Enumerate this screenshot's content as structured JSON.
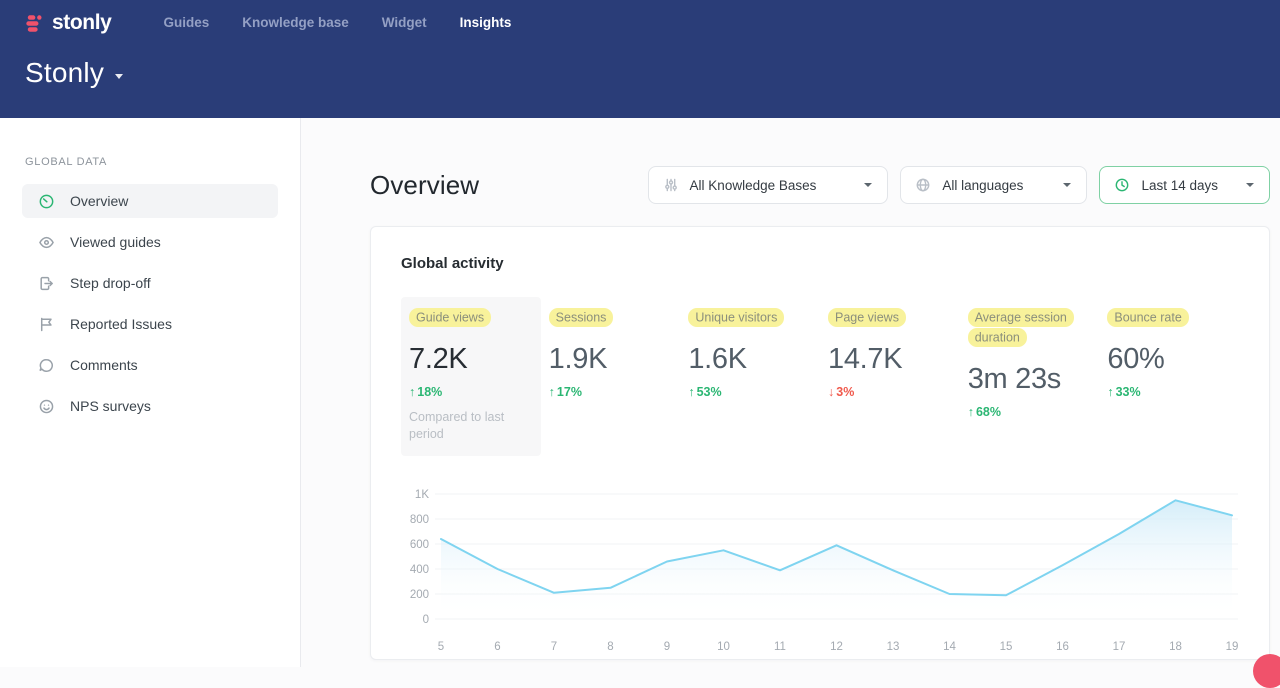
{
  "topbar": {
    "logo_text": "stonly",
    "workspace": "Stonly",
    "nav": [
      {
        "label": "Guides",
        "active": false
      },
      {
        "label": "Knowledge base",
        "active": false
      },
      {
        "label": "Widget",
        "active": false
      },
      {
        "label": "Insights",
        "active": true
      }
    ]
  },
  "sidebar": {
    "section_label": "GLOBAL DATA",
    "items": [
      {
        "label": "Overview",
        "icon": "gauge-icon",
        "active": true
      },
      {
        "label": "Viewed guides",
        "icon": "eye-icon",
        "active": false
      },
      {
        "label": "Step drop-off",
        "icon": "step-dropoff-icon",
        "active": false
      },
      {
        "label": "Reported Issues",
        "icon": "flag-icon",
        "active": false
      },
      {
        "label": "Comments",
        "icon": "comment-icon",
        "active": false
      },
      {
        "label": "NPS surveys",
        "icon": "smiley-icon",
        "active": false
      }
    ]
  },
  "page": {
    "title": "Overview"
  },
  "filters": [
    {
      "label": "All Knowledge Bases",
      "icon": "sliders-icon",
      "accent": false
    },
    {
      "label": "All languages",
      "icon": "globe-icon",
      "accent": false
    },
    {
      "label": "Last 14 days",
      "icon": "clock-icon",
      "accent": true
    }
  ],
  "card": {
    "title": "Global activity"
  },
  "metrics": [
    {
      "label": "Guide views",
      "value": "7.2K",
      "delta": "18%",
      "direction": "up",
      "selected": true,
      "note": "Compared to last period"
    },
    {
      "label": "Sessions",
      "value": "1.9K",
      "delta": "17%",
      "direction": "up",
      "selected": false,
      "note": ""
    },
    {
      "label": "Unique visitors",
      "value": "1.6K",
      "delta": "53%",
      "direction": "up",
      "selected": false,
      "note": ""
    },
    {
      "label": "Page views",
      "value": "14.7K",
      "delta": "3%",
      "direction": "down",
      "selected": false,
      "note": ""
    },
    {
      "label": "Average session duration",
      "value": "3m 23s",
      "delta": "68%",
      "direction": "up",
      "selected": false,
      "note": ""
    },
    {
      "label": "Bounce rate",
      "value": "60%",
      "delta": "33%",
      "direction": "up",
      "selected": false,
      "note": ""
    }
  ],
  "chart_data": {
    "type": "area",
    "title": "Global activity — Guide views by day",
    "x": [
      5,
      6,
      7,
      8,
      9,
      10,
      11,
      12,
      13,
      14,
      15,
      16,
      17,
      18,
      19
    ],
    "series": [
      {
        "name": "Guide views",
        "values": [
          640,
          400,
          210,
          250,
          460,
          550,
          390,
          590,
          390,
          200,
          190,
          430,
          680,
          950,
          830
        ]
      }
    ],
    "ylim": [
      0,
      1000
    ],
    "y_tick_values": [
      0,
      200,
      400,
      600,
      800,
      1000
    ],
    "y_ticks": [
      "0",
      "200",
      "400",
      "600",
      "800",
      "1K"
    ],
    "grid": true,
    "legend": "none",
    "line_color": "#7fd4f0",
    "fill_top_color": "#cdeaf8",
    "grid_color": "#f1f3f5"
  },
  "colors": {
    "navy": "#2a3d78",
    "brand-pink": "#f0526b",
    "green": "#2bb673",
    "negative-red": "#f0594c",
    "highlight-yellow": "#f8f29b",
    "chart-blue": "#7fd4f0"
  }
}
